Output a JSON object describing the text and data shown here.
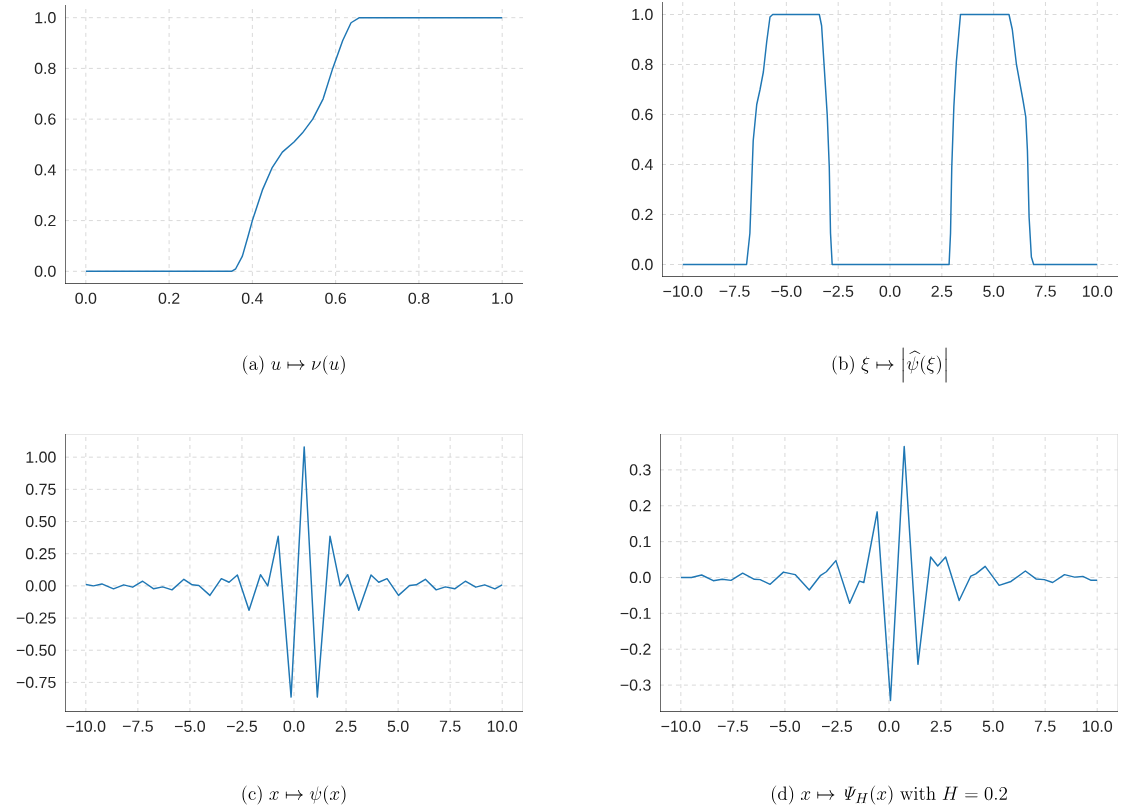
{
  "chart_data": [
    {
      "type": "line",
      "title": "\\mathrm{(a)}\\; u \\mapsto \\nu(u)",
      "grid": true,
      "color": "#1f77b4",
      "x": [
        0,
        0.35,
        0.36,
        0.376,
        0.39,
        0.4,
        0.424,
        0.448,
        0.472,
        0.5,
        0.52,
        0.545,
        0.57,
        0.593,
        0.617,
        0.637,
        0.657,
        1.0
      ],
      "values": [
        0,
        0,
        0.01,
        0.06,
        0.14,
        0.2,
        0.32,
        0.41,
        0.47,
        0.51,
        0.545,
        0.6,
        0.68,
        0.8,
        0.91,
        0.98,
        1.0,
        1.0
      ],
      "xlim": [
        -0.05,
        1.05
      ],
      "ylim": [
        -0.05,
        1.05
      ],
      "xticks": [
        {
          "value": 0,
          "label": "0.0"
        },
        {
          "value": 0.2,
          "label": "0.2"
        },
        {
          "value": 0.4,
          "label": "0.4"
        },
        {
          "value": 0.6,
          "label": "0.6"
        },
        {
          "value": 0.8,
          "label": "0.8"
        },
        {
          "value": 1,
          "label": "1.0"
        }
      ],
      "yticks": [
        {
          "value": 0,
          "label": "0.0"
        },
        {
          "value": 0.2,
          "label": "0.2"
        },
        {
          "value": 0.4,
          "label": "0.4"
        },
        {
          "value": 0.6,
          "label": "0.6"
        },
        {
          "value": 0.8,
          "label": "0.8"
        },
        {
          "value": 1,
          "label": "1.0"
        }
      ]
    },
    {
      "type": "line",
      "title": "\\mathrm{(b)}\\; \\xi \\mapsto \\left|\\widehat{\\psi}(\\xi)\\right|",
      "grid": true,
      "color": "#1f77b4",
      "x": [
        -10,
        -6.92,
        -6.76,
        -6.6,
        -6.43,
        -6.27,
        -6.11,
        -5.95,
        -5.79,
        -5.66,
        -3.41,
        -3.3,
        -3.14,
        -3.03,
        -2.93,
        -2.87,
        -2.79,
        2.85,
        2.92,
        2.98,
        3.08,
        3.2,
        3.4,
        5.74,
        5.9,
        6.1,
        6.42,
        6.55,
        6.63,
        6.71,
        6.82,
        6.93,
        10
      ],
      "values": [
        0,
        0,
        0.125,
        0.495,
        0.64,
        0.7,
        0.77,
        0.89,
        0.99,
        1,
        1,
        0.955,
        0.745,
        0.6,
        0.39,
        0.125,
        0,
        0,
        0.125,
        0.39,
        0.63,
        0.81,
        1,
        1,
        0.94,
        0.8,
        0.655,
        0.59,
        0.455,
        0.19,
        0.03,
        0,
        0
      ],
      "xlim": [
        -11,
        11
      ],
      "ylim": [
        -0.05,
        1.05
      ],
      "xticks": [
        {
          "value": -10,
          "label": "−10.0"
        },
        {
          "value": -7.5,
          "label": "−7.5"
        },
        {
          "value": -5,
          "label": "−5.0"
        },
        {
          "value": -2.5,
          "label": "−2.5"
        },
        {
          "value": 0,
          "label": "0.0"
        },
        {
          "value": 2.5,
          "label": "2.5"
        },
        {
          "value": 5,
          "label": "5.0"
        },
        {
          "value": 7.5,
          "label": "7.5"
        },
        {
          "value": 10,
          "label": "10.0"
        }
      ],
      "yticks": [
        {
          "value": 0,
          "label": "0.0"
        },
        {
          "value": 0.2,
          "label": "0.2"
        },
        {
          "value": 0.4,
          "label": "0.4"
        },
        {
          "value": 0.6,
          "label": "0.6"
        },
        {
          "value": 0.8,
          "label": "0.8"
        },
        {
          "value": 1,
          "label": "1.0"
        }
      ]
    },
    {
      "type": "line",
      "title": "\\mathrm{(c)}\\; x \\mapsto \\psi(x)",
      "grid": true,
      "color": "#1f77b4",
      "x": [
        -10,
        -9.63,
        -9.23,
        -8.67,
        -8.18,
        -7.75,
        -7.27,
        -6.74,
        -6.31,
        -5.86,
        -5.29,
        -4.89,
        -4.57,
        -4.04,
        -3.49,
        -3.12,
        -2.72,
        -2.16,
        -1.61,
        -1.26,
        -0.76,
        -0.14,
        0.49,
        1.12,
        1.73,
        2.22,
        2.58,
        3.11,
        3.7,
        4.07,
        4.47,
        5.02,
        5.55,
        5.87,
        6.31,
        6.83,
        7.27,
        7.72,
        8.23,
        8.73,
        9.16,
        9.65,
        10
      ],
      "values": [
        0.01,
        0,
        0.015,
        -0.023,
        0.008,
        -0.01,
        0.036,
        -0.023,
        -0.008,
        -0.031,
        0.051,
        0.008,
        0.003,
        -0.074,
        0.056,
        0.028,
        0.085,
        -0.19,
        0.087,
        0,
        0.385,
        -0.864,
        1.08,
        -0.864,
        0.385,
        0,
        0.087,
        -0.19,
        0.085,
        0.028,
        0.056,
        -0.074,
        0.003,
        0.008,
        0.051,
        -0.031,
        -0.008,
        -0.023,
        0.036,
        -0.01,
        0.008,
        -0.023,
        0.008
      ],
      "xlim": [
        -11,
        11
      ],
      "ylim": [
        -0.98,
        1.18
      ],
      "xticks": [
        {
          "value": -10,
          "label": "−10.0"
        },
        {
          "value": -7.5,
          "label": "−7.5"
        },
        {
          "value": -5,
          "label": "−5.0"
        },
        {
          "value": -2.5,
          "label": "−2.5"
        },
        {
          "value": 0,
          "label": "0.0"
        },
        {
          "value": 2.5,
          "label": "2.5"
        },
        {
          "value": 5,
          "label": "5.0"
        },
        {
          "value": 7.5,
          "label": "7.5"
        },
        {
          "value": 10,
          "label": "10.0"
        }
      ],
      "yticks": [
        {
          "value": -0.75,
          "label": "−0.75"
        },
        {
          "value": -0.5,
          "label": "−0.50"
        },
        {
          "value": -0.25,
          "label": "−0.25"
        },
        {
          "value": 0,
          "label": "0.00"
        },
        {
          "value": 0.25,
          "label": "0.25"
        },
        {
          "value": 0.5,
          "label": "0.50"
        },
        {
          "value": 0.75,
          "label": "0.75"
        },
        {
          "value": 1,
          "label": "1.00"
        }
      ]
    },
    {
      "type": "line",
      "title": "\\mathrm{(d)}\\; x \\mapsto \\mathit{\\Psi}_H(x)\\ \\mathrm{with}\\ H = 0.2",
      "grid": true,
      "color": "#1f77b4",
      "x": [
        -10,
        -9.49,
        -9.0,
        -8.44,
        -8.01,
        -7.59,
        -7.03,
        -6.47,
        -6.19,
        -5.71,
        -5.07,
        -4.51,
        -3.83,
        -3.3,
        -3.01,
        -2.55,
        -1.89,
        -1.42,
        -1.21,
        -0.57,
        0.07,
        0.73,
        1.39,
        2.0,
        2.34,
        2.72,
        3.37,
        3.93,
        4.17,
        4.62,
        5.29,
        5.86,
        6.55,
        7.06,
        7.46,
        7.86,
        8.43,
        8.91,
        9.31,
        9.71,
        10
      ],
      "values": [
        0,
        0,
        0.007,
        -0.009,
        -0.005,
        -0.008,
        0.012,
        -0.005,
        -0.006,
        -0.019,
        0.015,
        0.008,
        -0.035,
        0.005,
        0.016,
        0.047,
        -0.072,
        -0.01,
        -0.014,
        0.183,
        -0.343,
        0.365,
        -0.242,
        0.057,
        0.032,
        0.057,
        -0.064,
        0.004,
        0.01,
        0.031,
        -0.022,
        -0.011,
        0.018,
        -0.004,
        -0.006,
        -0.014,
        0.008,
        0.001,
        0.003,
        -0.008,
        -0.008
      ],
      "xlim": [
        -11,
        11
      ],
      "ylim": [
        -0.375,
        0.4
      ],
      "xticks": [
        {
          "value": -10,
          "label": "−10.0"
        },
        {
          "value": -7.5,
          "label": "−7.5"
        },
        {
          "value": -5,
          "label": "−5.0"
        },
        {
          "value": -2.5,
          "label": "−2.5"
        },
        {
          "value": 0,
          "label": "0.0"
        },
        {
          "value": 2.5,
          "label": "2.5"
        },
        {
          "value": 5,
          "label": "5.0"
        },
        {
          "value": 7.5,
          "label": "7.5"
        },
        {
          "value": 10,
          "label": "10.0"
        }
      ],
      "yticks": [
        {
          "value": -0.3,
          "label": "−0.3"
        },
        {
          "value": -0.2,
          "label": "−0.2"
        },
        {
          "value": -0.1,
          "label": "−0.1"
        },
        {
          "value": 0,
          "label": "0.0"
        },
        {
          "value": 0.1,
          "label": "0.1"
        },
        {
          "value": 0.2,
          "label": "0.2"
        },
        {
          "value": 0.3,
          "label": "0.3"
        }
      ]
    }
  ]
}
